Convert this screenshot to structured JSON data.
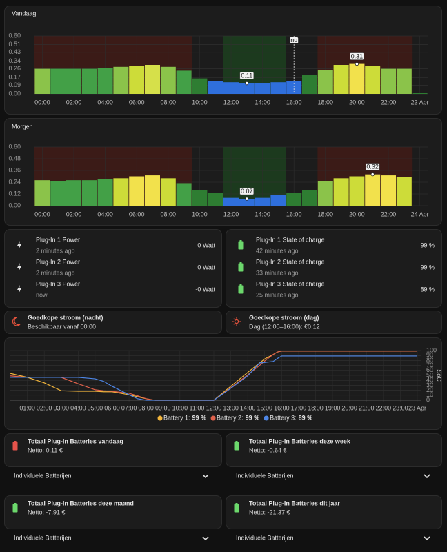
{
  "chart_data": [
    {
      "type": "bar",
      "title": "Vandaag",
      "categories": [
        "00:00",
        null,
        "02:00",
        null,
        "04:00",
        null,
        "06:00",
        null,
        "08:00",
        null,
        "10:00",
        null,
        "12:00",
        null,
        "14:00",
        null,
        "16:00",
        null,
        "18:00",
        null,
        "20:00",
        null,
        "22:00",
        null,
        "23 Apr"
      ],
      "values": [
        0.26,
        0.26,
        0.26,
        0.26,
        0.27,
        0.28,
        0.29,
        0.3,
        0.28,
        0.24,
        0.16,
        0.13,
        0.12,
        0.11,
        0.11,
        0.12,
        0.13,
        0.2,
        0.25,
        0.3,
        0.31,
        0.29,
        0.26,
        0.26,
        0
      ],
      "value_labels": [
        null,
        null,
        null,
        null,
        null,
        null,
        null,
        null,
        null,
        null,
        null,
        null,
        null,
        "0.11",
        null,
        null,
        null,
        null,
        null,
        null,
        "0.31",
        null,
        null,
        null,
        null
      ],
      "colors": [
        "#8bc34a",
        "#43a047",
        "#43a047",
        "#43a047",
        "#43a047",
        "#8bc34a",
        "#cddc39",
        "#d6e04a",
        "#8bc34a",
        "#43a047",
        "#2e7d32",
        "#2f6fdc",
        "#2f6fdc",
        "#2f6fdc",
        "#2f6fdc",
        "#2f6fdc",
        "#2f6fdc",
        "#2e7d32",
        "#8bc34a",
        "#cddc39",
        "#f2e14c",
        "#cddc39",
        "#8bc34a",
        "#8bc34a",
        "#2e7d32"
      ],
      "regions": [
        {
          "from": 0,
          "to": 10,
          "color": "#3b1b17"
        },
        {
          "from": 12,
          "to": 16,
          "color": "#1c3a1e"
        },
        {
          "from": 18,
          "to": 24,
          "color": "#3b1b17"
        }
      ],
      "now_marker": {
        "label": "nu",
        "at": 16.5
      },
      "ylim": [
        0,
        0.6
      ],
      "yticks": [
        {
          "value": 0,
          "label": "0.00"
        },
        0.09,
        0.17,
        0.26,
        0.34,
        0.43,
        0.51,
        {
          "value": 0.6,
          "label": "0.60"
        }
      ],
      "grid": true
    },
    {
      "type": "bar",
      "title": "Morgen",
      "categories": [
        "00:00",
        null,
        "02:00",
        null,
        "04:00",
        null,
        "06:00",
        null,
        "08:00",
        null,
        "10:00",
        null,
        "12:00",
        null,
        "14:00",
        null,
        "16:00",
        null,
        "18:00",
        null,
        "20:00",
        null,
        "22:00",
        null,
        "24 Apr"
      ],
      "values": [
        0.26,
        0.25,
        0.26,
        0.26,
        0.27,
        0.28,
        0.3,
        0.31,
        0.28,
        0.23,
        0.16,
        0.13,
        0.08,
        0.07,
        0.08,
        0.11,
        0.13,
        0.16,
        0.25,
        0.28,
        0.3,
        0.32,
        0.31,
        0.29,
        null
      ],
      "value_labels": [
        null,
        null,
        null,
        null,
        null,
        null,
        null,
        null,
        null,
        null,
        null,
        null,
        null,
        "0.07",
        null,
        null,
        null,
        null,
        null,
        null,
        null,
        "0.32",
        null,
        null,
        null
      ],
      "colors": [
        "#8bc34a",
        "#43a047",
        "#43a047",
        "#43a047",
        "#43a047",
        "#cddc39",
        "#f2e14c",
        "#f2e14c",
        "#cddc39",
        "#43a047",
        "#2e7d32",
        "#2e7d32",
        "#2f6fdc",
        "#2f6fdc",
        "#2f6fdc",
        "#2f6fdc",
        "#2e7d32",
        "#2e7d32",
        "#8bc34a",
        "#cddc39",
        "#cddc39",
        "#f2e14c",
        "#f2e14c",
        "#cddc39",
        null
      ],
      "regions": [
        {
          "from": 0,
          "to": 10,
          "color": "#3b1b17"
        },
        {
          "from": 12,
          "to": 16,
          "color": "#1c3a1e"
        },
        {
          "from": 18,
          "to": 24,
          "color": "#3b1b17"
        }
      ],
      "ylim": [
        0,
        0.6
      ],
      "yticks": [
        {
          "value": 0,
          "label": "0.00"
        },
        0.12,
        0.24,
        0.36,
        0.48,
        {
          "value": 0.6,
          "label": "0.60"
        }
      ],
      "grid": true
    },
    {
      "type": "line",
      "y2_label": "SoC",
      "x": [
        0,
        1,
        2,
        3,
        4,
        5,
        5.5,
        6,
        7,
        7.5,
        8,
        8.5,
        9,
        12,
        13,
        14,
        14.7,
        15,
        15.5,
        15.75,
        16,
        24
      ],
      "series": [
        {
          "name": "Battery 1:",
          "legend_value": "99 %",
          "color": "#f2b53c",
          "axis": "y2",
          "values": [
            54,
            46,
            35,
            19,
            18,
            18,
            17,
            17,
            11,
            7,
            3,
            0,
            0,
            0,
            28,
            56,
            75,
            83,
            92,
            97,
            99,
            99
          ]
        },
        {
          "name": "Battery 2:",
          "legend_value": "99 %",
          "color": "#e0624c",
          "axis": "y2",
          "values": [
            49,
            46,
            46,
            46,
            33,
            21,
            19,
            18,
            14,
            9,
            3,
            0,
            0,
            0,
            25,
            51,
            70,
            79,
            92,
            97,
            99,
            99
          ]
        },
        {
          "name": "Battery 3:",
          "legend_value": "89 %",
          "color": "#4e86e6",
          "axis": "y2",
          "values": [
            46,
            46,
            46,
            46,
            46,
            43,
            38,
            28,
            11,
            3,
            0,
            0,
            0,
            0,
            24,
            49,
            75,
            76,
            78,
            84,
            89,
            89
          ]
        }
      ],
      "xlim": [
        0,
        24
      ],
      "xticks": [
        {
          "value": 1,
          "label": "01:00"
        },
        {
          "value": 2,
          "label": "02:00"
        },
        {
          "value": 3,
          "label": "03:00"
        },
        {
          "value": 4,
          "label": "04:00"
        },
        {
          "value": 5,
          "label": "05:00"
        },
        {
          "value": 6,
          "label": "06:00"
        },
        {
          "value": 7,
          "label": "07:00"
        },
        {
          "value": 8,
          "label": "08:00"
        },
        {
          "value": 9,
          "label": "09:00"
        },
        {
          "value": 10,
          "label": "10:00"
        },
        {
          "value": 11,
          "label": "11:00"
        },
        {
          "value": 12,
          "label": "12:00"
        },
        {
          "value": 13,
          "label": "13:00"
        },
        {
          "value": 14,
          "label": "14:00"
        },
        {
          "value": 15,
          "label": "15:00"
        },
        {
          "value": 16,
          "label": "16:00"
        },
        {
          "value": 17,
          "label": "17:00"
        },
        {
          "value": 18,
          "label": "18:00"
        },
        {
          "value": 19,
          "label": "19:00"
        },
        {
          "value": 20,
          "label": "20:00"
        },
        {
          "value": 21,
          "label": "21:00"
        },
        {
          "value": 22,
          "label": "22:00"
        },
        {
          "value": 23,
          "label": "23:00"
        },
        {
          "value": 24,
          "label": "23 Apr"
        }
      ],
      "y2lim": [
        0,
        100
      ],
      "y2ticks": [
        0,
        10,
        20,
        30,
        40,
        50,
        60,
        70,
        80,
        90,
        100
      ],
      "grid": true
    }
  ],
  "power": [
    {
      "name": "Plug-In 1 Power",
      "time": "2 minutes ago",
      "state": "0 Watt"
    },
    {
      "name": "Plug-In 2 Power",
      "time": "2 minutes ago",
      "state": "0 Watt"
    },
    {
      "name": "Plug-In 3 Power",
      "time": "now",
      "state": "-0 Watt"
    }
  ],
  "soc": [
    {
      "name": "Plug-In 1 State of charge",
      "time": "42 minutes ago",
      "state": "99 %"
    },
    {
      "name": "Plug-In 2 State of charge",
      "time": "33 minutes ago",
      "state": "99 %"
    },
    {
      "name": "Plug-In 3 State of charge",
      "time": "25 minutes ago",
      "state": "89 %"
    }
  ],
  "cheap": [
    {
      "title": "Goedkope stroom (nacht)",
      "detail": "Beschikbaar vanaf 00:00"
    },
    {
      "title": "Goedkope stroom (dag)",
      "detail": "Dag (12:00–16:00): €0.12"
    }
  ],
  "totals": [
    {
      "title": "Totaal Plug-In Batteries vandaag",
      "detail": "Netto: 0.11 €",
      "color": "#e5534b"
    },
    {
      "title": "Totaal Plug-In Batteries deze week",
      "detail": "Netto: -0.64 €",
      "color": "#6cd86c"
    },
    {
      "title": "Totaal Plug-In Batteries deze maand",
      "detail": "Netto: -7.91 €",
      "color": "#6cd86c"
    },
    {
      "title": "Totaal Plug-In Batteries dit jaar",
      "detail": "Netto: -21.37 €",
      "color": "#6cd86c"
    }
  ],
  "expanders": [
    "Individuele Batterijen",
    "Individuele Batterijen",
    "Individuele Batterijen",
    "Individuele Batterijen"
  ]
}
